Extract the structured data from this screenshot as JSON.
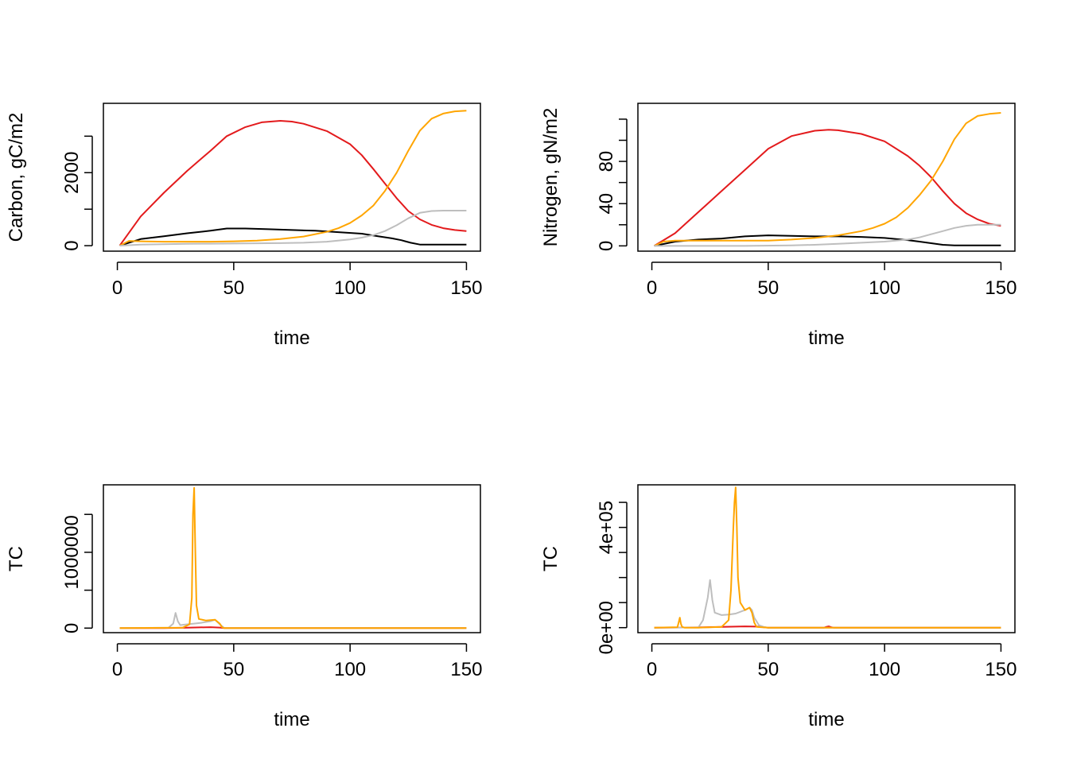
{
  "colors": {
    "black": "#000000",
    "red": "#E31A1C",
    "orange": "#FFA500",
    "gray": "#BEBEBE"
  },
  "chart_data": [
    {
      "type": "line",
      "xlabel": "time",
      "ylabel": "Carbon, gC/m2",
      "xlim": [
        -6,
        156
      ],
      "ylim": [
        -150,
        3900
      ],
      "x_ticks": [
        0,
        50,
        100,
        150
      ],
      "x_tick_labels": [
        "0",
        "50",
        "100",
        "150"
      ],
      "y_ticks": [
        0,
        1000,
        2000,
        3000
      ],
      "y_tick_labels": [
        "0",
        "",
        "2000",
        ""
      ],
      "series": [
        {
          "name": "black",
          "color": "#000000",
          "x": [
            1,
            10,
            20,
            30,
            40,
            47,
            55,
            65,
            75,
            85,
            95,
            105,
            112,
            118,
            122,
            126,
            130,
            140,
            150
          ],
          "y": [
            0,
            180,
            260,
            340,
            410,
            470,
            470,
            450,
            430,
            410,
            370,
            330,
            260,
            200,
            150,
            80,
            30,
            30,
            30
          ]
        },
        {
          "name": "red",
          "color": "#E31A1C",
          "x": [
            1,
            10,
            20,
            30,
            40,
            47,
            55,
            62,
            70,
            75,
            80,
            90,
            100,
            105,
            110,
            115,
            120,
            125,
            130,
            135,
            140,
            145,
            150
          ],
          "y": [
            0,
            800,
            1450,
            2050,
            2600,
            3000,
            3250,
            3380,
            3420,
            3400,
            3340,
            3140,
            2780,
            2480,
            2100,
            1700,
            1300,
            950,
            720,
            570,
            480,
            430,
            400
          ]
        },
        {
          "name": "orange",
          "color": "#FFA500",
          "x": [
            1,
            5,
            10,
            20,
            30,
            40,
            50,
            60,
            70,
            80,
            90,
            95,
            100,
            105,
            110,
            115,
            120,
            125,
            130,
            135,
            140,
            145,
            150
          ],
          "y": [
            0,
            130,
            120,
            110,
            110,
            110,
            120,
            140,
            180,
            250,
            380,
            480,
            620,
            830,
            1100,
            1500,
            2000,
            2600,
            3150,
            3480,
            3620,
            3680,
            3700
          ]
        },
        {
          "name": "gray",
          "color": "#BEBEBE",
          "x": [
            1,
            10,
            20,
            30,
            40,
            50,
            60,
            70,
            80,
            90,
            100,
            105,
            110,
            115,
            120,
            125,
            130,
            135,
            140,
            150
          ],
          "y": [
            0,
            30,
            40,
            50,
            55,
            60,
            65,
            70,
            80,
            110,
            170,
            220,
            290,
            400,
            560,
            750,
            900,
            950,
            960,
            960
          ]
        }
      ]
    },
    {
      "type": "line",
      "xlabel": "time",
      "ylabel": "Nitrogen, gN/m2",
      "xlim": [
        -6,
        156
      ],
      "ylim": [
        -5,
        135
      ],
      "x_ticks": [
        0,
        50,
        100,
        150
      ],
      "x_tick_labels": [
        "0",
        "50",
        "100",
        "150"
      ],
      "y_ticks": [
        0,
        20,
        40,
        60,
        80,
        100,
        120
      ],
      "y_tick_labels": [
        "0",
        "",
        "40",
        "",
        "80",
        "",
        ""
      ],
      "series": [
        {
          "name": "black",
          "color": "#000000",
          "x": [
            1,
            10,
            20,
            30,
            40,
            50,
            60,
            70,
            80,
            90,
            100,
            110,
            115,
            120,
            125,
            130,
            140,
            150
          ],
          "y": [
            0,
            4,
            6,
            7,
            9,
            10,
            9.5,
            9,
            9,
            8.5,
            7.5,
            5.5,
            4,
            2.5,
            1,
            0.5,
            0.5,
            0.5
          ]
        },
        {
          "name": "red",
          "color": "#E31A1C",
          "x": [
            1,
            10,
            20,
            30,
            40,
            50,
            60,
            70,
            76,
            80,
            90,
            100,
            110,
            115,
            120,
            125,
            130,
            135,
            140,
            145,
            150
          ],
          "y": [
            0,
            12,
            32,
            52,
            72,
            92,
            104,
            109,
            110,
            109.5,
            106,
            99,
            85,
            76,
            65,
            52,
            40,
            31,
            25,
            21,
            19
          ]
        },
        {
          "name": "orange",
          "color": "#FFA500",
          "x": [
            1,
            5,
            10,
            20,
            30,
            40,
            50,
            60,
            70,
            80,
            90,
            95,
            100,
            105,
            110,
            115,
            120,
            125,
            130,
            135,
            140,
            145,
            150
          ],
          "y": [
            0,
            4,
            5,
            5,
            5,
            5,
            5,
            6,
            7.5,
            10,
            14,
            17,
            21,
            27,
            36,
            48,
            62,
            80,
            101,
            116,
            123,
            125,
            126
          ]
        },
        {
          "name": "gray",
          "color": "#BEBEBE",
          "x": [
            1,
            20,
            40,
            60,
            70,
            80,
            90,
            100,
            110,
            115,
            120,
            125,
            130,
            135,
            140,
            150
          ],
          "y": [
            0,
            0,
            0,
            0.5,
            1,
            2,
            3,
            4,
            6,
            8,
            11,
            14,
            17,
            19,
            20,
            20
          ]
        }
      ]
    },
    {
      "type": "line",
      "xlabel": "time",
      "ylabel": "TC",
      "xlim": [
        -6,
        156
      ],
      "ylim": [
        -60000,
        1890000
      ],
      "x_ticks": [
        0,
        50,
        100,
        150
      ],
      "x_tick_labels": [
        "0",
        "50",
        "100",
        "150"
      ],
      "y_ticks": [
        0,
        500000,
        1000000,
        1500000
      ],
      "y_tick_labels": [
        "0",
        "",
        "1000000",
        ""
      ],
      "series": [
        {
          "name": "red",
          "color": "#E31A1C",
          "x": [
            1,
            20,
            25,
            30,
            35,
            40,
            44,
            46,
            150
          ],
          "y": [
            0,
            0,
            3000,
            6000,
            9000,
            12000,
            7000,
            0,
            0
          ]
        },
        {
          "name": "gray",
          "color": "#BEBEBE",
          "x": [
            1,
            22,
            24,
            25,
            26,
            27,
            30,
            33,
            36,
            40,
            42,
            44,
            46,
            150
          ],
          "y": [
            0,
            5000,
            60000,
            200000,
            90000,
            40000,
            50000,
            60000,
            70000,
            90000,
            110000,
            50000,
            0,
            0
          ]
        },
        {
          "name": "orange",
          "color": "#FFA500",
          "x": [
            1,
            28,
            31,
            32,
            32.5,
            33,
            33.5,
            34,
            35,
            38,
            42,
            44,
            45,
            46,
            150
          ],
          "y": [
            0,
            5000,
            50000,
            400000,
            1500000,
            1850000,
            1000000,
            300000,
            120000,
            100000,
            110000,
            60000,
            10000,
            0,
            0
          ]
        }
      ]
    },
    {
      "type": "line",
      "xlabel": "time",
      "ylabel": "TC",
      "xlim": [
        -6,
        156
      ],
      "ylim": [
        -20000,
        570000
      ],
      "x_ticks": [
        0,
        50,
        100,
        150
      ],
      "x_tick_labels": [
        "0",
        "50",
        "100",
        "150"
      ],
      "y_ticks": [
        0,
        100000,
        200000,
        300000,
        400000,
        500000
      ],
      "y_tick_labels": [
        "0e+00",
        "",
        "",
        "",
        "4e+05",
        ""
      ],
      "series": [
        {
          "name": "red",
          "color": "#E31A1C",
          "x": [
            1,
            20,
            30,
            40,
            45,
            48,
            50,
            52,
            74,
            75,
            76,
            77,
            78,
            150
          ],
          "y": [
            0,
            1000,
            3000,
            5000,
            4000,
            2000,
            0,
            0,
            0,
            3000,
            5000,
            2000,
            0,
            0
          ]
        },
        {
          "name": "gray",
          "color": "#BEBEBE",
          "x": [
            1,
            20,
            22,
            24,
            25,
            26,
            27,
            30,
            33,
            36,
            40,
            42,
            43,
            44,
            46,
            48,
            50,
            150
          ],
          "y": [
            0,
            1000,
            30000,
            120000,
            190000,
            110000,
            60000,
            50000,
            52000,
            56000,
            70000,
            80000,
            70000,
            40000,
            10000,
            3000,
            0,
            0
          ]
        },
        {
          "name": "orange",
          "color": "#FFA500",
          "x": [
            1,
            11,
            11.5,
            12,
            12.5,
            13,
            14,
            20,
            30,
            33,
            34,
            35,
            35.5,
            36,
            36.5,
            37,
            38,
            40,
            42,
            43,
            44,
            45,
            50,
            150
          ],
          "y": [
            0,
            2000,
            20000,
            40000,
            15000,
            3000,
            0,
            0,
            3000,
            30000,
            150000,
            400000,
            500000,
            560000,
            400000,
            200000,
            100000,
            70000,
            80000,
            60000,
            20000,
            3000,
            0,
            0
          ]
        }
      ]
    }
  ]
}
